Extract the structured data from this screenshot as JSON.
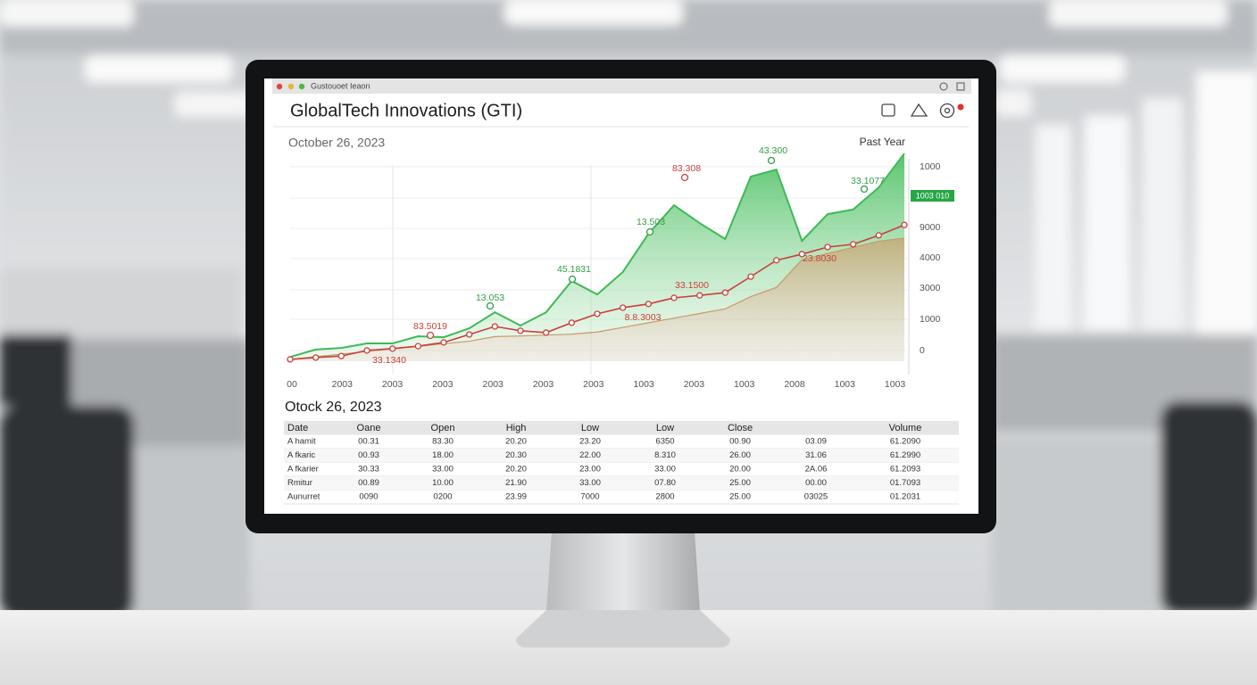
{
  "window": {
    "title": "Gustouoet Ieaon"
  },
  "header": {
    "title": "GlobalTech Innovations (GTI)",
    "date": "October 26, 2023",
    "range": "Past Year"
  },
  "chart_data": {
    "type": "area",
    "ylim": [
      0,
      7000
    ],
    "x_axis_labels": [
      "00",
      "2003",
      "2003",
      "2003",
      "2003",
      "2003",
      "2003",
      "1003",
      "2003",
      "1003",
      "2008",
      "1003",
      "1003"
    ],
    "y_axis_labels": [
      "1000",
      "9000",
      "4000",
      "3000",
      "1000",
      "0"
    ],
    "badge": "1003 010",
    "series": [
      {
        "color": "#3dbb55",
        "style": "area",
        "values": [
          140,
          380,
          430,
          580,
          580,
          810,
          780,
          1070,
          1590,
          1160,
          1590,
          2610,
          2170,
          2900,
          4140,
          5070,
          4490,
          3970,
          6000,
          6230,
          3910,
          4780,
          4930,
          5650,
          6750
        ]
      },
      {
        "color": "#c89a6a",
        "style": "area",
        "values": [
          60,
          150,
          230,
          320,
          400,
          480,
          570,
          650,
          800,
          820,
          850,
          880,
          950,
          1100,
          1250,
          1400,
          1550,
          1700,
          2100,
          2400,
          3300,
          3500,
          3700,
          3900,
          4000
        ]
      },
      {
        "color": "#c9403a",
        "style": "line",
        "values": [
          60,
          120,
          170,
          350,
          410,
          490,
          610,
          870,
          1130,
          990,
          930,
          1250,
          1540,
          1740,
          1860,
          2060,
          2140,
          2230,
          2750,
          3280,
          3480,
          3710,
          3800,
          4090,
          4430
        ]
      }
    ],
    "annotations": [
      {
        "text": "43.300",
        "color": "#2f9e44"
      },
      {
        "text": "83.308",
        "color": "#c9403a"
      },
      {
        "text": "33.1077",
        "color": "#2f9e44"
      },
      {
        "text": "13.503",
        "color": "#2f9e44"
      },
      {
        "text": "45.1831",
        "color": "#2f9e44"
      },
      {
        "text": "13.053",
        "color": "#2f9e44"
      },
      {
        "text": "83.5019",
        "color": "#c9403a"
      },
      {
        "text": "33.1340",
        "color": "#c9403a"
      },
      {
        "text": "33.1500",
        "color": "#c9403a"
      },
      {
        "text": "8.8.3003",
        "color": "#c9403a"
      },
      {
        "text": "23.8030",
        "color": "#c9403a"
      }
    ]
  },
  "table": {
    "title": "Otock 26, 2023",
    "columns": [
      "Date",
      "Oane",
      "Open",
      "High",
      "Low",
      "Low",
      "Close",
      null,
      "Volume"
    ],
    "rows": [
      [
        "A hamit",
        "00.31",
        "83.30",
        "20.20",
        "23.20",
        "6350",
        "00.90",
        "03.09",
        "61.2090"
      ],
      [
        "A fkaric",
        "00.93",
        "18.00",
        "20.30",
        "22.00",
        "8.310",
        "26.00",
        "31.06",
        "61.2990"
      ],
      [
        "A fkarier",
        "30.33",
        "33.00",
        "20.20",
        "23.00",
        "33.00",
        "20.00",
        "2A.06",
        "61.2093"
      ],
      [
        "Rmitur",
        "00.89",
        "10.00",
        "21.90",
        "33.00",
        "07.80",
        "25.00",
        "00.00",
        "01.7093"
      ],
      [
        "Aunurret",
        "0090",
        "0200",
        "23.99",
        "7000",
        "2800",
        "25.00",
        "03025",
        "01.2031"
      ]
    ]
  }
}
